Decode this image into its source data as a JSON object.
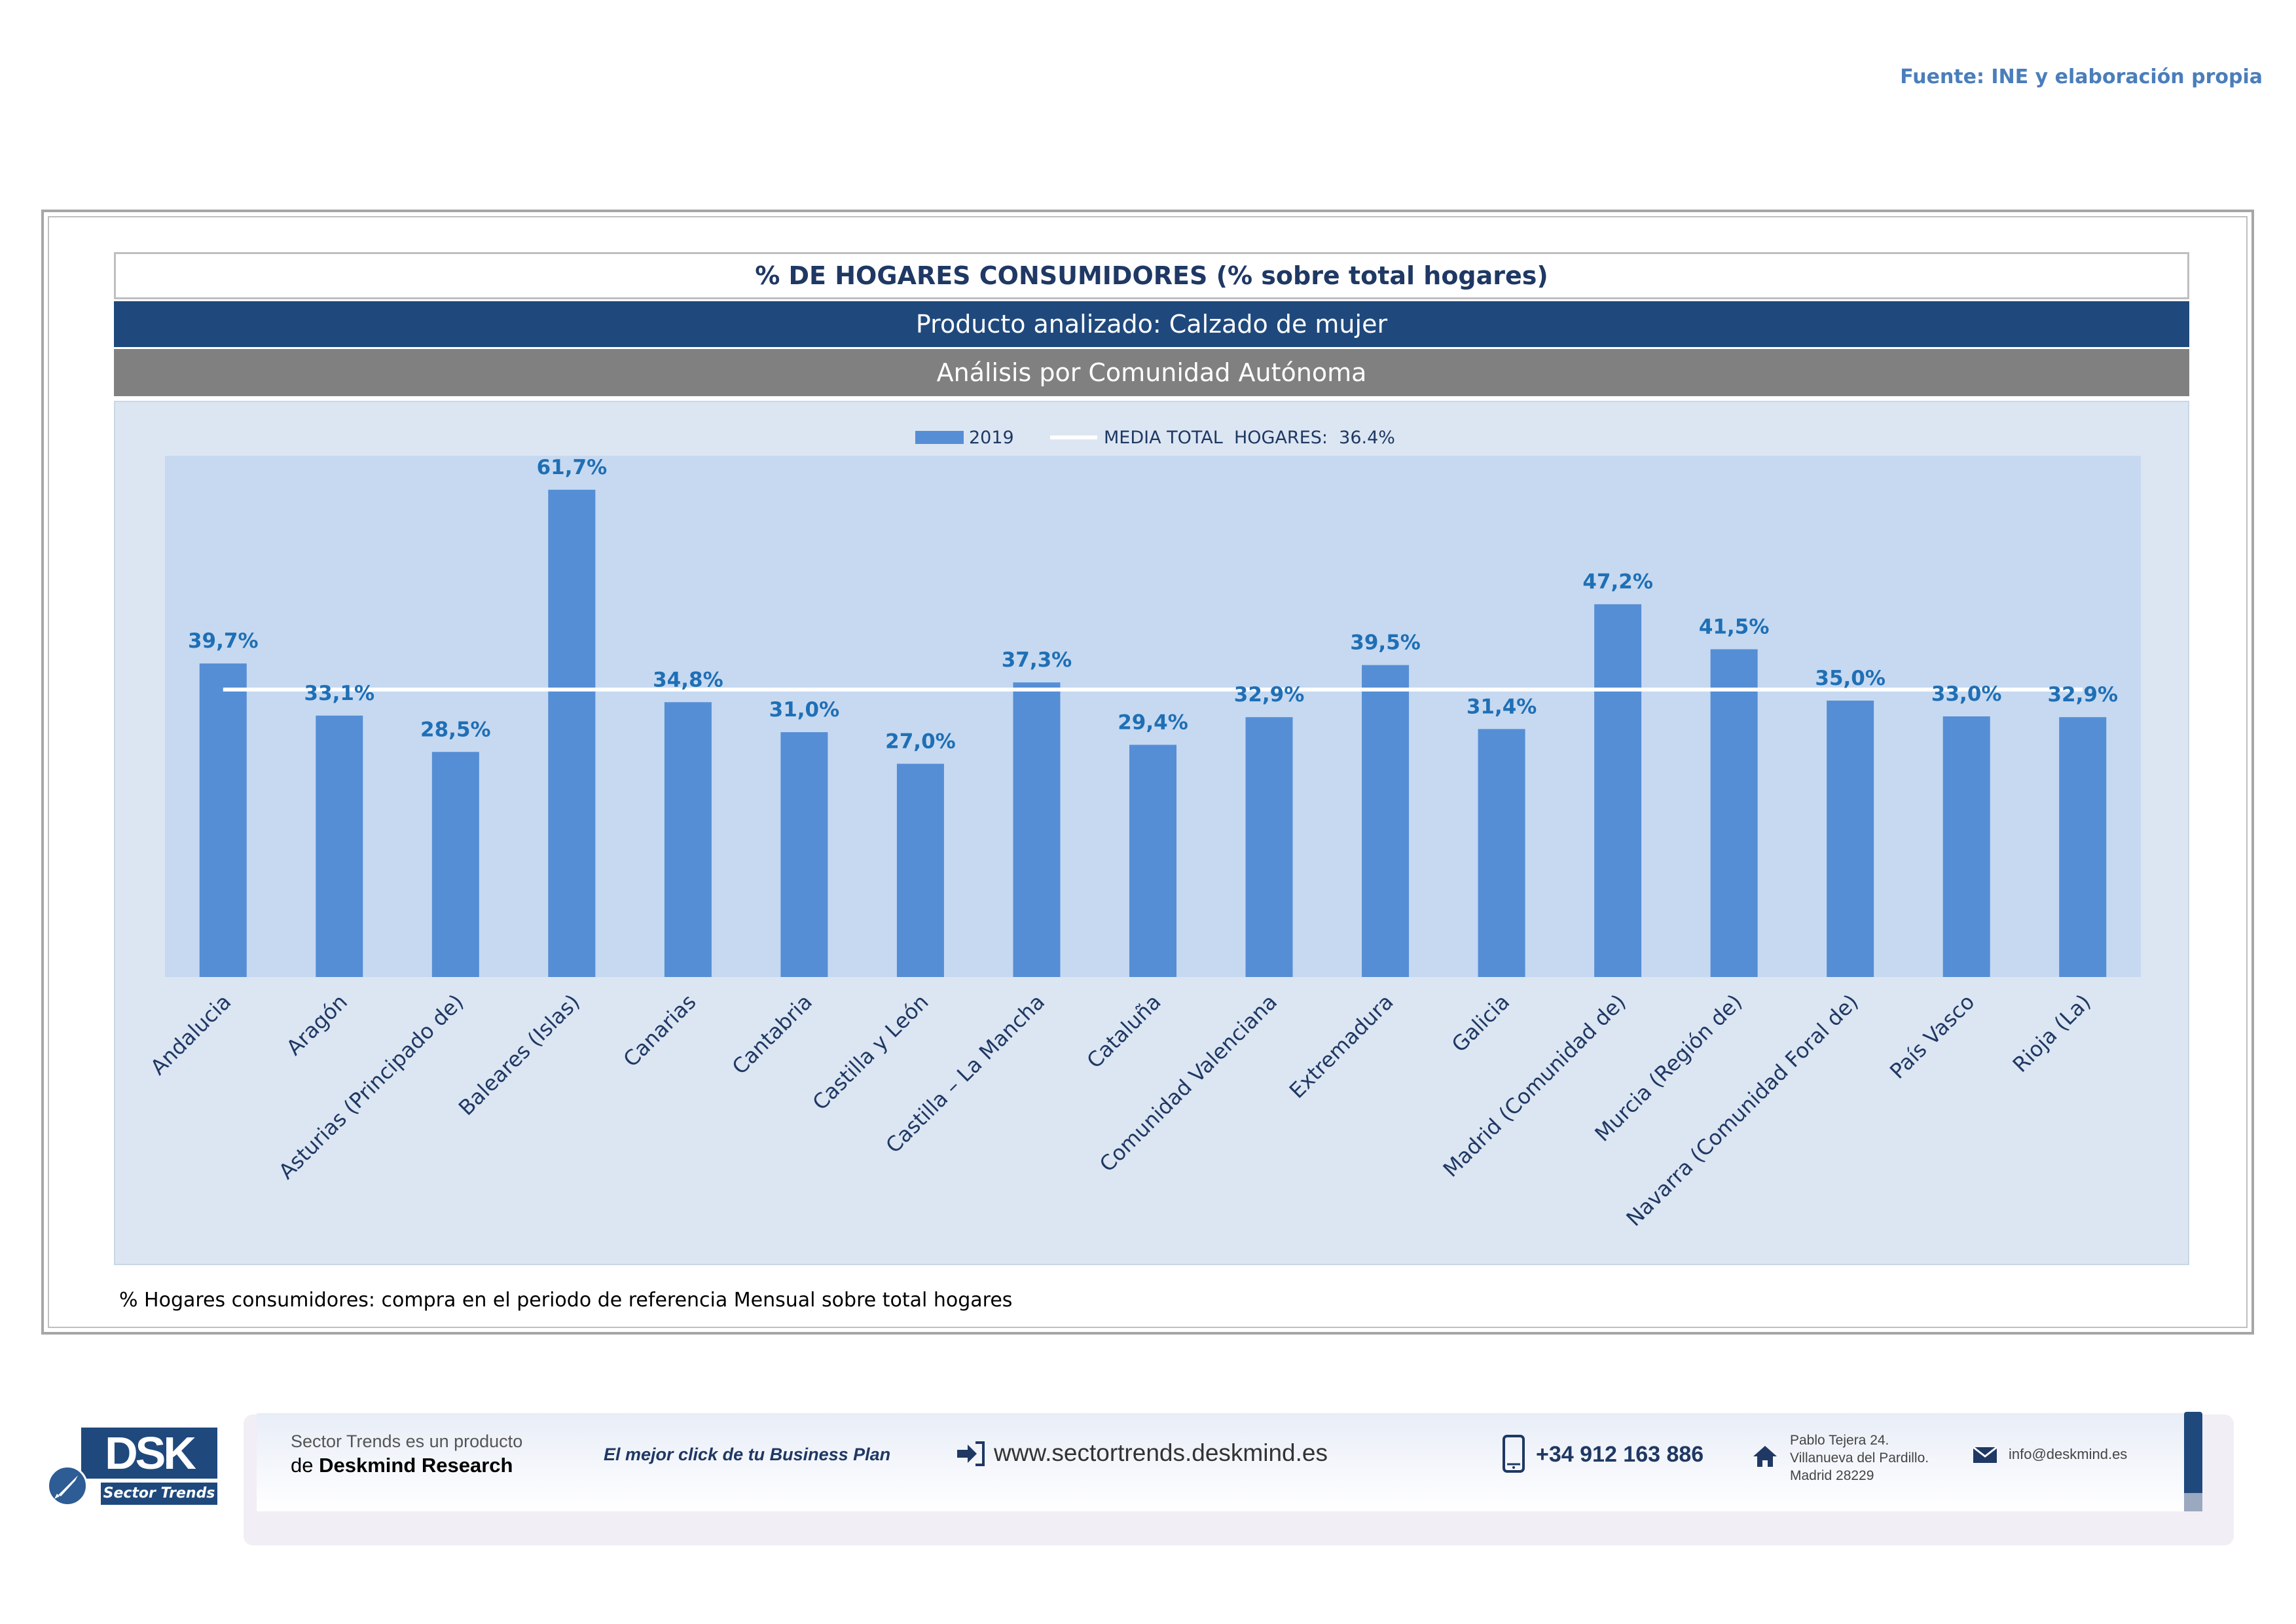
{
  "source": "Fuente: INE y elaboración propia",
  "header": {
    "title": "% DE HOGARES CONSUMIDORES (% sobre total hogares)",
    "product": "Producto analizado: Calzado de mujer",
    "analysis": "Análisis por Comunidad Autónoma"
  },
  "chart_data": {
    "type": "bar",
    "categories": [
      "Andalucia",
      "Aragón",
      "Asturias (Principado de)",
      "Baleares (Islas)",
      "Canarias",
      "Cantabria",
      "Castilla y León",
      "Castilla – La Mancha",
      "Cataluña",
      "Comunidad Valenciana",
      "Extremadura",
      "Galicia",
      "Madrid (Comunidad de)",
      "Murcia (Región de)",
      "Navarra (Comunidad Foral de)",
      "País Vasco",
      "Rioja (La)"
    ],
    "series": [
      {
        "name": "2019",
        "values": [
          39.7,
          33.1,
          28.5,
          61.7,
          34.8,
          31.0,
          27.0,
          37.3,
          29.4,
          32.9,
          39.5,
          31.4,
          47.2,
          41.5,
          35.0,
          33.0,
          32.9
        ],
        "color": "#558ed5"
      }
    ],
    "data_labels": [
      "39,7%",
      "33,1%",
      "28,5%",
      "61,7%",
      "34,8%",
      "31,0%",
      "27,0%",
      "37,3%",
      "29,4%",
      "32,9%",
      "39,5%",
      "31,4%",
      "47,2%",
      "41,5%",
      "35,0%",
      "33,0%",
      "32,9%"
    ],
    "reference_line": {
      "name": "MEDIA TOTAL  HOGARES:  36.4%",
      "value": 36.4,
      "color": "#ffffff"
    },
    "legend": {
      "position": "top",
      "items": [
        "2019",
        "MEDIA TOTAL  HOGARES:  36.4%"
      ]
    },
    "ylim": [
      0,
      66
    ],
    "grid": false,
    "colors": {
      "bar": "#558ed5",
      "plot_bg": "#c6d9f1",
      "label": "#1f6fb5",
      "axis_text": "#1f3864"
    }
  },
  "footnote": "% Hogares consumidores: compra en el periodo de referencia Mensual sobre total hogares",
  "footer": {
    "logo_text": "DSK",
    "logo_sub": "Sector Trends",
    "line1": "Sector Trends es un producto",
    "line2_prefix": "de",
    "line2_brand": "Deskmind Research",
    "slogan": "El mejor click de tu Business Plan",
    "website": "www.sectortrends.deskmind.es",
    "phone": "+34 912 163 886",
    "address_1": "Pablo Tejera 24.",
    "address_2": "Villanueva del Pardillo.",
    "address_3": "Madrid 28229",
    "email": "info@deskmind.es",
    "icons": [
      "login-arrow-icon",
      "phone-icon",
      "home-icon",
      "mail-icon",
      "rocket-icon"
    ]
  }
}
